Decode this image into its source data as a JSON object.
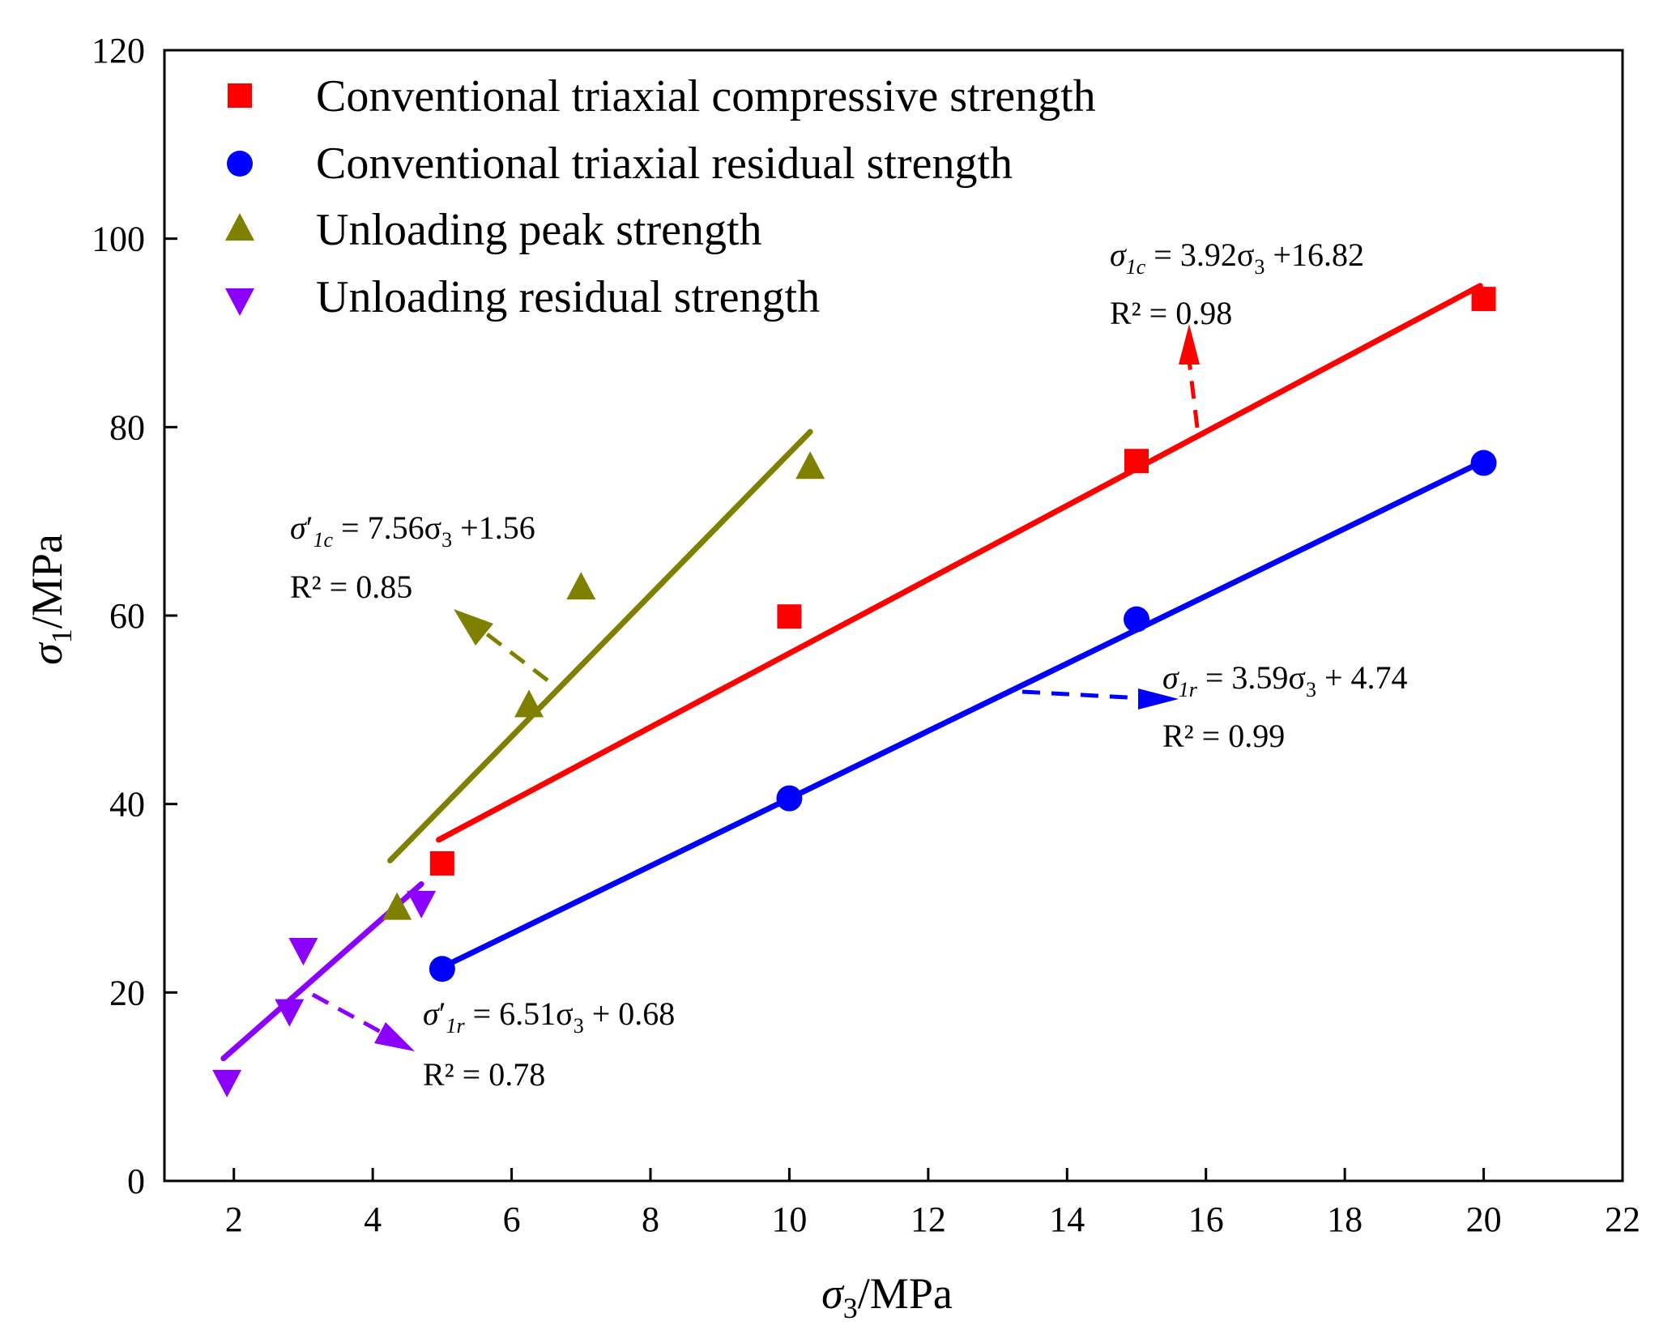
{
  "chart_data": {
    "type": "scatter",
    "title": "",
    "xlabel": {
      "symbol": "σ",
      "sub": "3",
      "unit": "/MPa"
    },
    "ylabel": {
      "symbol": "σ",
      "sub": "1",
      "unit": "/MPa"
    },
    "xlim": [
      1,
      22
    ],
    "ylim": [
      0,
      120
    ],
    "xticks": [
      2,
      4,
      6,
      8,
      10,
      12,
      14,
      16,
      18,
      20,
      22
    ],
    "yticks": [
      0,
      20,
      40,
      60,
      80,
      100,
      120
    ],
    "grid": false,
    "legend_position": "top-left",
    "series": [
      {
        "name": "Conventional triaxial compressive strength",
        "marker": "square",
        "color": "#ff0000",
        "x": [
          5,
          10,
          15,
          20
        ],
        "y": [
          33.7,
          59.9,
          76.4,
          93.6
        ],
        "fit": {
          "x": [
            4.95,
            19.95
          ],
          "y": [
            36.2,
            95.0
          ]
        },
        "equation": {
          "sym": "σ",
          "prime": "",
          "sub": "1c",
          "rhs": " = 3.92σ",
          "rhs_sub": "3",
          "rhs_tail": " +16.82",
          "r2": "R² = 0.98"
        }
      },
      {
        "name": "Conventional triaxial residual strength",
        "marker": "circle",
        "color": "#0000ff",
        "x": [
          5,
          10,
          15,
          20
        ],
        "y": [
          22.5,
          40.6,
          59.6,
          76.2
        ],
        "fit": {
          "x": [
            4.95,
            20.0
          ],
          "y": [
            22.5,
            76.4
          ]
        },
        "equation": {
          "sym": "σ",
          "prime": "",
          "sub": "1r",
          "rhs": " = 3.59σ",
          "rhs_sub": "3",
          "rhs_tail": " + 4.74",
          "r2": "R² = 0.99"
        }
      },
      {
        "name": "Unloading peak strength",
        "marker": "triangle-up",
        "color": "#808000",
        "x": [
          4.35,
          6.25,
          7.0,
          10.3
        ],
        "y": [
          29.0,
          50.5,
          63.0,
          75.8
        ],
        "fit": {
          "x": [
            4.25,
            10.3
          ],
          "y": [
            34.0,
            79.5
          ]
        },
        "equation": {
          "sym": "σ",
          "prime": "′",
          "sub": "1c",
          "rhs": " = 7.56σ",
          "rhs_sub": "3",
          "rhs_tail": " +1.56",
          "r2": "R² = 0.85"
        }
      },
      {
        "name": "Unloading residual strength",
        "marker": "triangle-down",
        "color": "#8b00ff",
        "x": [
          1.9,
          2.8,
          3.0,
          4.7
        ],
        "y": [
          10.5,
          18.0,
          24.5,
          29.5
        ],
        "fit": {
          "x": [
            1.85,
            4.7
          ],
          "y": [
            13.0,
            31.5
          ]
        },
        "equation": {
          "sym": "σ",
          "prime": "′",
          "sub": "1r",
          "rhs": " = 6.51σ",
          "rhs_sub": "3",
          "rhs_tail": " + 0.68",
          "r2": "R² = 0.78"
        }
      }
    ]
  }
}
